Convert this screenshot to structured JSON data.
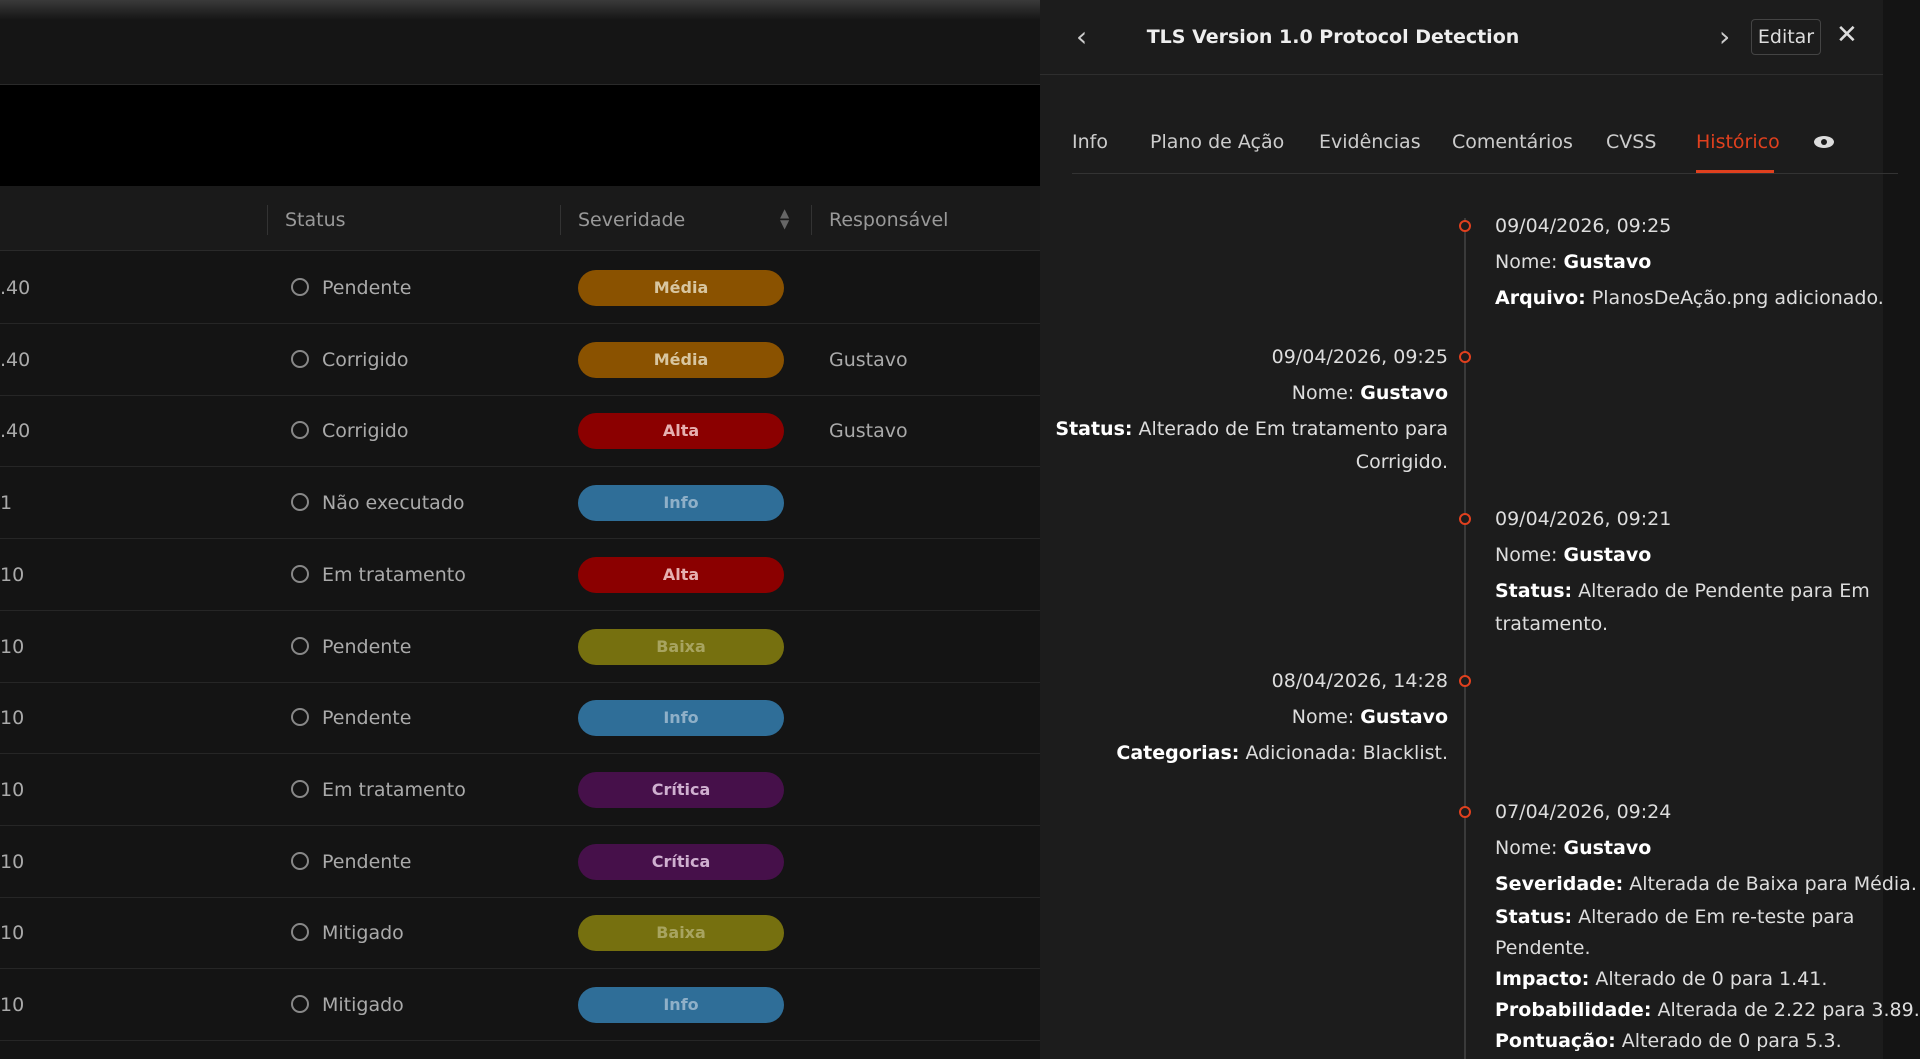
{
  "table": {
    "headers": [
      "Status",
      "Severidade",
      "Responsável"
    ],
    "rows": [
      [
        ".40",
        "Pendente",
        "Média",
        ""
      ],
      [
        ".40",
        "Corrigido",
        "Média",
        "Gustavo"
      ],
      [
        ".40",
        "Corrigido",
        "Alta",
        "Gustavo"
      ],
      [
        "1",
        "Não executado",
        "Info",
        ""
      ],
      [
        "10",
        "Em tratamento",
        "Alta",
        ""
      ],
      [
        "10",
        "Pendente",
        "Baixa",
        ""
      ],
      [
        "10",
        "Pendente",
        "Info",
        ""
      ],
      [
        "10",
        "Em tratamento",
        "Crítica",
        ""
      ],
      [
        "10",
        "Pendente",
        "Crítica",
        ""
      ],
      [
        "10",
        "Mitigado",
        "Baixa",
        ""
      ],
      [
        "10",
        "Mitigado",
        "Info",
        ""
      ]
    ]
  },
  "panel": {
    "title": "TLS Version 1.0 Protocol Detection",
    "edit": "Editar",
    "tabs": [
      "Info",
      "Plano de Ação",
      "Evidências",
      "Comentários",
      "CVSS",
      "Histórico"
    ],
    "history": [
      {
        "date": "09/04/2026, 09:25",
        "name_label": "Nome:",
        "name": "Gustavo",
        "fields": [
          {
            "label": "Arquivo:",
            "lines": [
              "PlanosDeAção.png adicionado."
            ]
          }
        ]
      },
      {
        "date": "09/04/2026, 09:25",
        "name_label": "Nome:",
        "name": "Gustavo",
        "fields": [
          {
            "label": "Status:",
            "lines": [
              "Alterado de Em tratamento para",
              "Corrigido."
            ]
          }
        ]
      },
      {
        "date": "09/04/2026, 09:21",
        "name_label": "Nome:",
        "name": "Gustavo",
        "fields": [
          {
            "label": "Status:",
            "lines": [
              "Alterado de Pendente para Em",
              "tratamento."
            ]
          }
        ]
      },
      {
        "date": "08/04/2026, 14:28",
        "name_label": "Nome:",
        "name": "Gustavo",
        "fields": [
          {
            "label": "Categorias:",
            "lines": [
              "Adicionada: Blacklist."
            ]
          }
        ]
      },
      {
        "date": "07/04/2026, 09:24",
        "name_label": "Nome:",
        "name": "Gustavo",
        "fields": [
          {
            "label": "Severidade:",
            "lines": [
              "Alterada de Baixa para Média."
            ]
          },
          {
            "label": "Status:",
            "lines": [
              "Alterado de Em re-teste para",
              "Pendente."
            ]
          },
          {
            "label": "Impacto:",
            "lines": [
              "Alterado de 0 para 1.41."
            ]
          },
          {
            "label": "Probabilidade:",
            "lines": [
              "Alterada de 2.22 para 3.89."
            ]
          },
          {
            "label": "Pontuação:",
            "lines": [
              "Alterado de 0 para 5.3."
            ]
          }
        ]
      }
    ]
  }
}
